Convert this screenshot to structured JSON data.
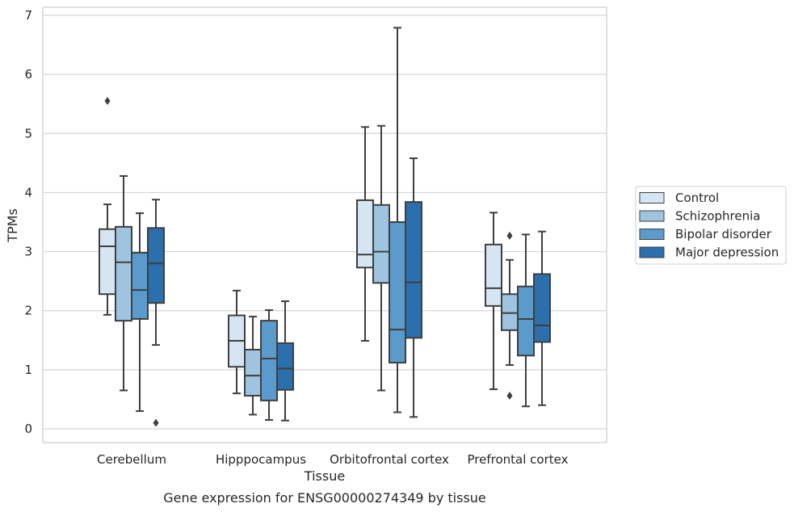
{
  "caption": "Gene expression for ENSG00000274349 by tissue",
  "chart_data": {
    "type": "box",
    "xlabel": "Tissue",
    "ylabel": "TPMs",
    "ylim": [
      -0.2,
      7.1
    ],
    "yticks": [
      0,
      1,
      2,
      3,
      4,
      5,
      6,
      7
    ],
    "grid": "horizontal",
    "legend_position": "right",
    "categories": [
      "Cerebellum",
      "Hipppocampus",
      "Orbitofrontal cortex",
      "Prefrontal cortex"
    ],
    "series": [
      {
        "name": "Control",
        "color": "#d6e5f4",
        "boxes": [
          {
            "whislo": 1.93,
            "q1": 2.28,
            "med": 3.09,
            "q3": 3.38,
            "whishi": 3.8,
            "fliers": [
              5.55
            ]
          },
          {
            "whislo": 0.6,
            "q1": 1.05,
            "med": 1.49,
            "q3": 1.92,
            "whishi": 2.34,
            "fliers": []
          },
          {
            "whislo": 1.49,
            "q1": 2.73,
            "med": 2.95,
            "q3": 3.87,
            "whishi": 5.11,
            "fliers": []
          },
          {
            "whislo": 0.67,
            "q1": 2.08,
            "med": 2.38,
            "q3": 3.12,
            "whishi": 3.66,
            "fliers": []
          }
        ]
      },
      {
        "name": "Schizophrenia",
        "color": "#9fc4e0",
        "boxes": [
          {
            "whislo": 0.65,
            "q1": 1.83,
            "med": 2.82,
            "q3": 3.42,
            "whishi": 4.28,
            "fliers": []
          },
          {
            "whislo": 0.24,
            "q1": 0.56,
            "med": 0.9,
            "q3": 1.34,
            "whishi": 1.9,
            "fliers": []
          },
          {
            "whislo": 0.65,
            "q1": 2.47,
            "med": 3.0,
            "q3": 3.79,
            "whishi": 5.13,
            "fliers": []
          },
          {
            "whislo": 1.08,
            "q1": 1.67,
            "med": 1.96,
            "q3": 2.28,
            "whishi": 2.86,
            "fliers": [
              0.56,
              3.27
            ]
          }
        ]
      },
      {
        "name": "Bipolar disorder",
        "color": "#5b9bcc",
        "boxes": [
          {
            "whislo": 0.3,
            "q1": 1.86,
            "med": 2.35,
            "q3": 2.98,
            "whishi": 3.65,
            "fliers": []
          },
          {
            "whislo": 0.15,
            "q1": 0.48,
            "med": 1.19,
            "q3": 1.83,
            "whishi": 2.01,
            "fliers": []
          },
          {
            "whislo": 0.28,
            "q1": 1.12,
            "med": 1.68,
            "q3": 3.5,
            "whishi": 6.79,
            "fliers": []
          },
          {
            "whislo": 0.38,
            "q1": 1.24,
            "med": 1.86,
            "q3": 2.41,
            "whishi": 3.29,
            "fliers": []
          }
        ]
      },
      {
        "name": "Major depression",
        "color": "#2c6fad",
        "boxes": [
          {
            "whislo": 1.42,
            "q1": 2.13,
            "med": 2.8,
            "q3": 3.4,
            "whishi": 3.88,
            "fliers": [
              0.1
            ]
          },
          {
            "whislo": 0.14,
            "q1": 0.66,
            "med": 1.02,
            "q3": 1.45,
            "whishi": 2.16,
            "fliers": []
          },
          {
            "whislo": 0.2,
            "q1": 1.54,
            "med": 2.48,
            "q3": 3.84,
            "whishi": 4.58,
            "fliers": []
          },
          {
            "whislo": 0.4,
            "q1": 1.47,
            "med": 1.75,
            "q3": 2.62,
            "whishi": 3.34,
            "fliers": []
          }
        ]
      }
    ]
  }
}
